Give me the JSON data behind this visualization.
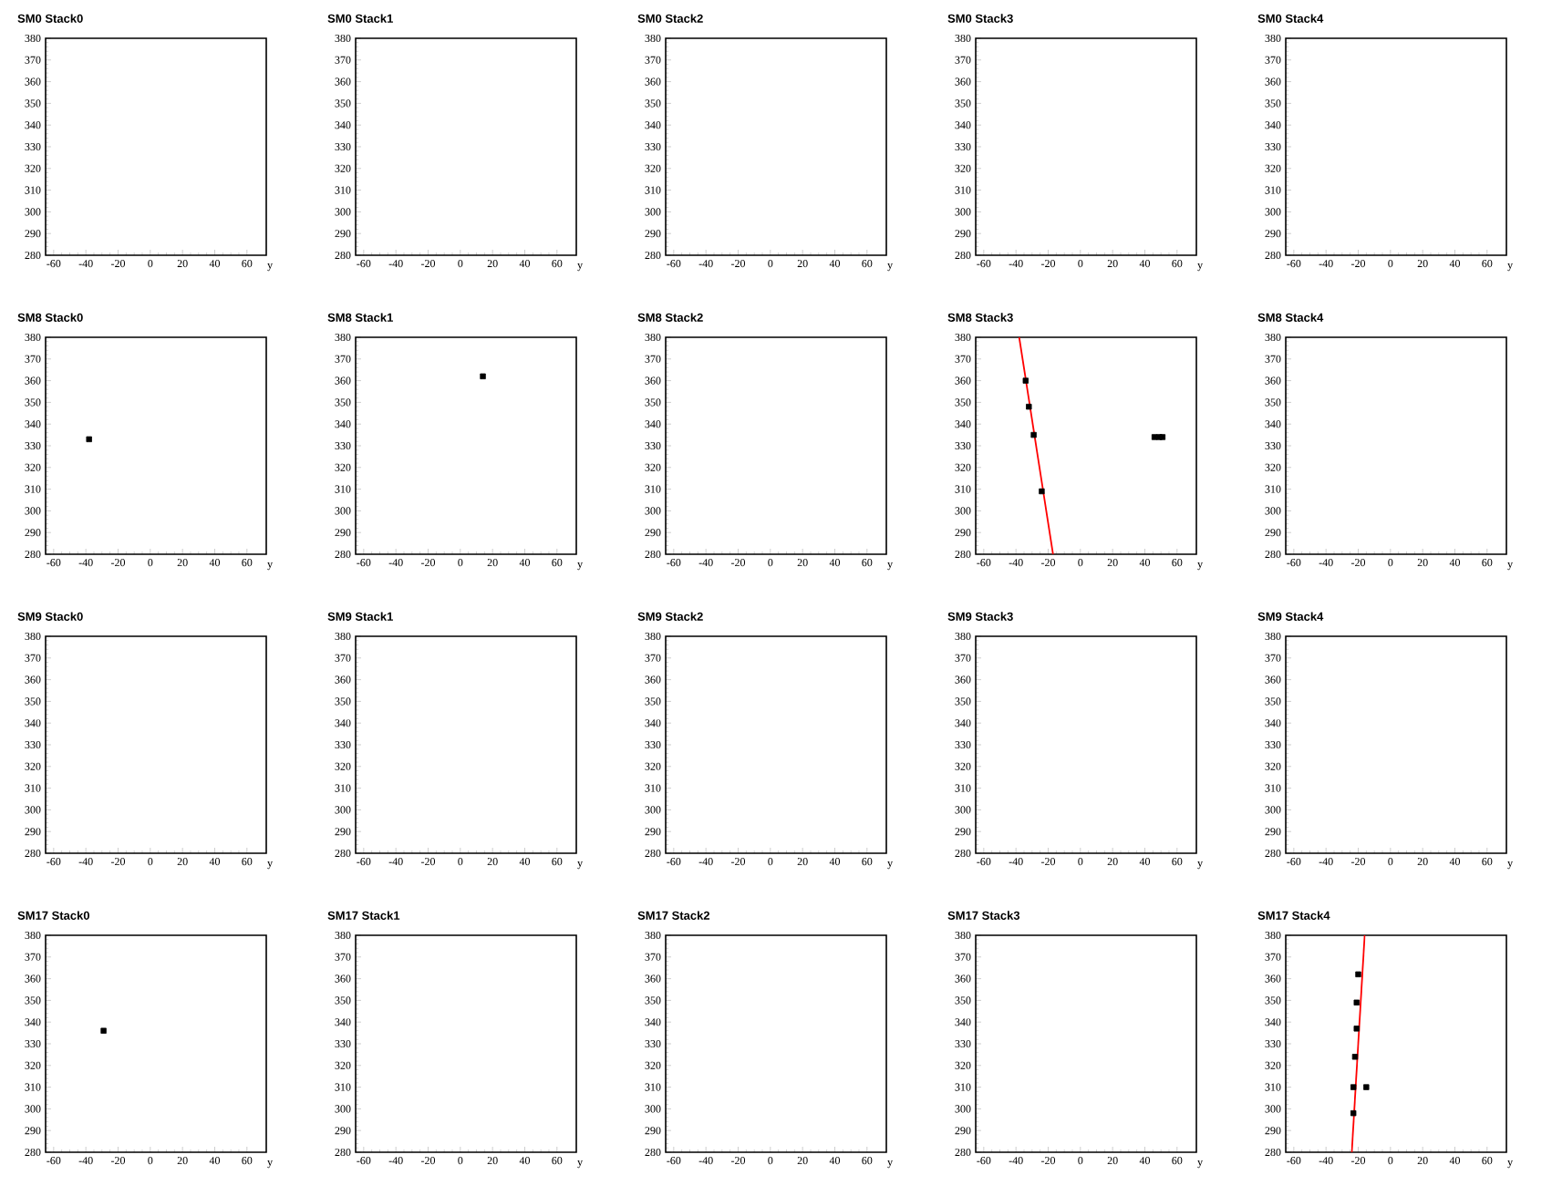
{
  "chart_data": [
    {
      "type": "scatter",
      "title": "SM0 Stack0",
      "xlabel": "y",
      "xlim": [
        -65,
        72
      ],
      "ylim": [
        280,
        380
      ],
      "xticks": [
        -60,
        -40,
        -20,
        0,
        20,
        40,
        60
      ],
      "yticks": [
        280,
        290,
        300,
        310,
        320,
        330,
        340,
        350,
        360,
        370,
        380
      ]
    },
    {
      "type": "scatter",
      "title": "SM0 Stack1",
      "xlabel": "y",
      "xlim": [
        -65,
        72
      ],
      "ylim": [
        280,
        380
      ],
      "xticks": [
        -60,
        -40,
        -20,
        0,
        20,
        40,
        60
      ],
      "yticks": [
        280,
        290,
        300,
        310,
        320,
        330,
        340,
        350,
        360,
        370,
        380
      ]
    },
    {
      "type": "scatter",
      "title": "SM0 Stack2",
      "xlabel": "y",
      "xlim": [
        -65,
        72
      ],
      "ylim": [
        280,
        380
      ],
      "xticks": [
        -60,
        -40,
        -20,
        0,
        20,
        40,
        60
      ],
      "yticks": [
        280,
        290,
        300,
        310,
        320,
        330,
        340,
        350,
        360,
        370,
        380
      ]
    },
    {
      "type": "scatter",
      "title": "SM0 Stack3",
      "xlabel": "y",
      "xlim": [
        -65,
        72
      ],
      "ylim": [
        280,
        380
      ],
      "xticks": [
        -60,
        -40,
        -20,
        0,
        20,
        40,
        60
      ],
      "yticks": [
        280,
        290,
        300,
        310,
        320,
        330,
        340,
        350,
        360,
        370,
        380
      ]
    },
    {
      "type": "scatter",
      "title": "SM0 Stack4",
      "xlabel": "y",
      "xlim": [
        -65,
        72
      ],
      "ylim": [
        280,
        380
      ],
      "xticks": [
        -60,
        -40,
        -20,
        0,
        20,
        40,
        60
      ],
      "yticks": [
        280,
        290,
        300,
        310,
        320,
        330,
        340,
        350,
        360,
        370,
        380
      ]
    },
    {
      "type": "scatter",
      "title": "SM8 Stack0",
      "xlabel": "y",
      "xlim": [
        -65,
        72
      ],
      "ylim": [
        280,
        380
      ],
      "xticks": [
        -60,
        -40,
        -20,
        0,
        20,
        40,
        60
      ],
      "yticks": [
        280,
        290,
        300,
        310,
        320,
        330,
        340,
        350,
        360,
        370,
        380
      ],
      "series": [
        {
          "color": "#000000",
          "marker": "square",
          "x": [
            -38
          ],
          "values": [
            333
          ]
        }
      ]
    },
    {
      "type": "scatter",
      "title": "SM8 Stack1",
      "xlabel": "y",
      "xlim": [
        -65,
        72
      ],
      "ylim": [
        280,
        380
      ],
      "xticks": [
        -60,
        -40,
        -20,
        0,
        20,
        40,
        60
      ],
      "yticks": [
        280,
        290,
        300,
        310,
        320,
        330,
        340,
        350,
        360,
        370,
        380
      ],
      "series": [
        {
          "color": "#000000",
          "marker": "square",
          "x": [
            14
          ],
          "values": [
            362
          ]
        }
      ]
    },
    {
      "type": "scatter",
      "title": "SM8 Stack2",
      "xlabel": "y",
      "xlim": [
        -65,
        72
      ],
      "ylim": [
        280,
        380
      ],
      "xticks": [
        -60,
        -40,
        -20,
        0,
        20,
        40,
        60
      ],
      "yticks": [
        280,
        290,
        300,
        310,
        320,
        330,
        340,
        350,
        360,
        370,
        380
      ]
    },
    {
      "type": "scatter",
      "title": "SM8 Stack3",
      "xlabel": "y",
      "xlim": [
        -65,
        72
      ],
      "ylim": [
        280,
        380
      ],
      "xticks": [
        -60,
        -40,
        -20,
        0,
        20,
        40,
        60
      ],
      "yticks": [
        280,
        290,
        300,
        310,
        320,
        330,
        340,
        350,
        360,
        370,
        380
      ],
      "series": [
        {
          "color": "#000000",
          "marker": "square",
          "x": [
            -34,
            -32,
            -29,
            -24,
            46,
            49,
            51
          ],
          "values": [
            360,
            348,
            335,
            309,
            334,
            334,
            334
          ]
        },
        {
          "type": "line",
          "color": "#ff0000",
          "x": [
            -38,
            -17
          ],
          "values": [
            380,
            280
          ]
        }
      ]
    },
    {
      "type": "scatter",
      "title": "SM8 Stack4",
      "xlabel": "y",
      "xlim": [
        -65,
        72
      ],
      "ylim": [
        280,
        380
      ],
      "xticks": [
        -60,
        -40,
        -20,
        0,
        20,
        40,
        60
      ],
      "yticks": [
        280,
        290,
        300,
        310,
        320,
        330,
        340,
        350,
        360,
        370,
        380
      ]
    },
    {
      "type": "scatter",
      "title": "SM9 Stack0",
      "xlabel": "y",
      "xlim": [
        -65,
        72
      ],
      "ylim": [
        280,
        380
      ],
      "xticks": [
        -60,
        -40,
        -20,
        0,
        20,
        40,
        60
      ],
      "yticks": [
        280,
        290,
        300,
        310,
        320,
        330,
        340,
        350,
        360,
        370,
        380
      ]
    },
    {
      "type": "scatter",
      "title": "SM9 Stack1",
      "xlabel": "y",
      "xlim": [
        -65,
        72
      ],
      "ylim": [
        280,
        380
      ],
      "xticks": [
        -60,
        -40,
        -20,
        0,
        20,
        40,
        60
      ],
      "yticks": [
        280,
        290,
        300,
        310,
        320,
        330,
        340,
        350,
        360,
        370,
        380
      ]
    },
    {
      "type": "scatter",
      "title": "SM9 Stack2",
      "xlabel": "y",
      "xlim": [
        -65,
        72
      ],
      "ylim": [
        280,
        380
      ],
      "xticks": [
        -60,
        -40,
        -20,
        0,
        20,
        40,
        60
      ],
      "yticks": [
        280,
        290,
        300,
        310,
        320,
        330,
        340,
        350,
        360,
        370,
        380
      ]
    },
    {
      "type": "scatter",
      "title": "SM9 Stack3",
      "xlabel": "y",
      "xlim": [
        -65,
        72
      ],
      "ylim": [
        280,
        380
      ],
      "xticks": [
        -60,
        -40,
        -20,
        0,
        20,
        40,
        60
      ],
      "yticks": [
        280,
        290,
        300,
        310,
        320,
        330,
        340,
        350,
        360,
        370,
        380
      ]
    },
    {
      "type": "scatter",
      "title": "SM9 Stack4",
      "xlabel": "y",
      "xlim": [
        -65,
        72
      ],
      "ylim": [
        280,
        380
      ],
      "xticks": [
        -60,
        -40,
        -20,
        0,
        20,
        40,
        60
      ],
      "yticks": [
        280,
        290,
        300,
        310,
        320,
        330,
        340,
        350,
        360,
        370,
        380
      ]
    },
    {
      "type": "scatter",
      "title": "SM17 Stack0",
      "xlabel": "y",
      "xlim": [
        -65,
        72
      ],
      "ylim": [
        280,
        380
      ],
      "xticks": [
        -60,
        -40,
        -20,
        0,
        20,
        40,
        60
      ],
      "yticks": [
        280,
        290,
        300,
        310,
        320,
        330,
        340,
        350,
        360,
        370,
        380
      ],
      "series": [
        {
          "color": "#000000",
          "marker": "square",
          "x": [
            -29
          ],
          "values": [
            336
          ]
        }
      ]
    },
    {
      "type": "scatter",
      "title": "SM17 Stack1",
      "xlabel": "y",
      "xlim": [
        -65,
        72
      ],
      "ylim": [
        280,
        380
      ],
      "xticks": [
        -60,
        -40,
        -20,
        0,
        20,
        40,
        60
      ],
      "yticks": [
        280,
        290,
        300,
        310,
        320,
        330,
        340,
        350,
        360,
        370,
        380
      ]
    },
    {
      "type": "scatter",
      "title": "SM17 Stack2",
      "xlabel": "y",
      "xlim": [
        -65,
        72
      ],
      "ylim": [
        280,
        380
      ],
      "xticks": [
        -60,
        -40,
        -20,
        0,
        20,
        40,
        60
      ],
      "yticks": [
        280,
        290,
        300,
        310,
        320,
        330,
        340,
        350,
        360,
        370,
        380
      ]
    },
    {
      "type": "scatter",
      "title": "SM17 Stack3",
      "xlabel": "y",
      "xlim": [
        -65,
        72
      ],
      "ylim": [
        280,
        380
      ],
      "xticks": [
        -60,
        -40,
        -20,
        0,
        20,
        40,
        60
      ],
      "yticks": [
        280,
        290,
        300,
        310,
        320,
        330,
        340,
        350,
        360,
        370,
        380
      ]
    },
    {
      "type": "scatter",
      "title": "SM17 Stack4",
      "xlabel": "y",
      "xlim": [
        -65,
        72
      ],
      "ylim": [
        280,
        380
      ],
      "xticks": [
        -60,
        -40,
        -20,
        0,
        20,
        40,
        60
      ],
      "yticks": [
        280,
        290,
        300,
        310,
        320,
        330,
        340,
        350,
        360,
        370,
        380
      ],
      "series": [
        {
          "color": "#000000",
          "marker": "square",
          "x": [
            -20,
            -21,
            -21,
            -22,
            -23,
            -15,
            -23
          ],
          "values": [
            362,
            349,
            337,
            324,
            310,
            310,
            298
          ]
        },
        {
          "type": "line",
          "color": "#ff0000",
          "x": [
            -16,
            -24
          ],
          "values": [
            380,
            280
          ]
        }
      ]
    }
  ]
}
